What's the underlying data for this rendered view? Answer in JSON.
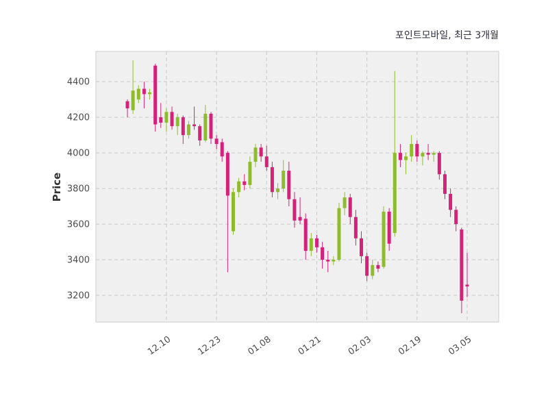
{
  "header": {
    "title": "포인트모바일, 최근 3개월"
  },
  "chart_data": {
    "type": "candlestick",
    "title": "포인트모바일, 최근 3개월",
    "xlabel": "",
    "ylabel": "Price",
    "yticks": [
      3200,
      3400,
      3600,
      3800,
      4000,
      4200,
      4400
    ],
    "ylim": [
      3050,
      4570
    ],
    "grid": "dashed",
    "legend": "none",
    "colors": {
      "up": "#8fbc2f",
      "down": "#d4217a",
      "plot_background": "#f0f0f0",
      "figure_background": "#ffffff",
      "grid": "#c8c8c8",
      "spine": "#cccccc",
      "text": "#4a4a4a",
      "title_text": "#2e2e3f"
    },
    "xticks": [
      {
        "index": 7,
        "label": "12.10"
      },
      {
        "index": 16,
        "label": "12.23"
      },
      {
        "index": 25,
        "label": "01.08"
      },
      {
        "index": 34,
        "label": "01.21"
      },
      {
        "index": 43,
        "label": "02.03"
      },
      {
        "index": 52,
        "label": "02.19"
      },
      {
        "index": 61,
        "label": "03.05"
      }
    ],
    "candles_format": [
      "open",
      "high",
      "low",
      "close"
    ],
    "candles": [
      [
        4290,
        4300,
        4200,
        4250
      ],
      [
        4240,
        4520,
        4220,
        4350
      ],
      [
        4300,
        4380,
        4280,
        4360
      ],
      [
        4360,
        4400,
        4250,
        4330
      ],
      [
        4330,
        4360,
        4300,
        4340
      ],
      [
        4490,
        4500,
        4120,
        4160
      ],
      [
        4200,
        4280,
        4140,
        4170
      ],
      [
        4170,
        4250,
        4120,
        4230
      ],
      [
        4230,
        4260,
        4130,
        4150
      ],
      [
        4150,
        4220,
        4100,
        4200
      ],
      [
        4200,
        4210,
        4050,
        4100
      ],
      [
        4100,
        4180,
        4080,
        4160
      ],
      [
        4160,
        4260,
        4130,
        4150
      ],
      [
        4150,
        4160,
        4040,
        4070
      ],
      [
        4070,
        4270,
        4060,
        4220
      ],
      [
        4220,
        4230,
        4050,
        4080
      ],
      [
        4080,
        4100,
        4020,
        4050
      ],
      [
        4060,
        4080,
        3950,
        3980
      ],
      [
        4000,
        4010,
        3330,
        3760
      ],
      [
        3560,
        3800,
        3540,
        3780
      ],
      [
        3780,
        3860,
        3750,
        3840
      ],
      [
        3840,
        3880,
        3790,
        3820
      ],
      [
        3820,
        3980,
        3800,
        3950
      ],
      [
        3950,
        4050,
        3920,
        4030
      ],
      [
        4030,
        4050,
        3950,
        3980
      ],
      [
        3980,
        4040,
        3900,
        3920
      ],
      [
        3920,
        3950,
        3750,
        3780
      ],
      [
        3780,
        3830,
        3740,
        3800
      ],
      [
        3800,
        3960,
        3780,
        3900
      ],
      [
        3900,
        3950,
        3700,
        3740
      ],
      [
        3740,
        3780,
        3580,
        3620
      ],
      [
        3640,
        3750,
        3600,
        3620
      ],
      [
        3630,
        3660,
        3400,
        3450
      ],
      [
        3450,
        3550,
        3420,
        3520
      ],
      [
        3520,
        3540,
        3440,
        3470
      ],
      [
        3470,
        3500,
        3350,
        3400
      ],
      [
        3400,
        3450,
        3330,
        3390
      ],
      [
        3390,
        3420,
        3370,
        3400
      ],
      [
        3400,
        3720,
        3390,
        3690
      ],
      [
        3690,
        3780,
        3650,
        3750
      ],
      [
        3750,
        3770,
        3600,
        3640
      ],
      [
        3640,
        3680,
        3480,
        3520
      ],
      [
        3520,
        3560,
        3380,
        3420
      ],
      [
        3420,
        3440,
        3280,
        3310
      ],
      [
        3310,
        3400,
        3290,
        3370
      ],
      [
        3370,
        3390,
        3330,
        3350
      ],
      [
        3360,
        3700,
        3350,
        3670
      ],
      [
        3670,
        3690,
        3450,
        3490
      ],
      [
        3550,
        4460,
        3530,
        4000
      ],
      [
        4000,
        4050,
        3920,
        3960
      ],
      [
        3960,
        4000,
        3880,
        3980
      ],
      [
        3980,
        4100,
        3950,
        4050
      ],
      [
        4050,
        4070,
        3950,
        3980
      ],
      [
        3980,
        4010,
        3930,
        4000
      ],
      [
        4000,
        4050,
        3960,
        3990
      ],
      [
        3990,
        4010,
        3950,
        4000
      ],
      [
        4000,
        4010,
        3850,
        3880
      ],
      [
        3880,
        3900,
        3740,
        3770
      ],
      [
        3770,
        3800,
        3640,
        3680
      ],
      [
        3680,
        3700,
        3560,
        3600
      ],
      [
        3570,
        3580,
        3100,
        3170
      ],
      [
        3260,
        3440,
        3190,
        3250
      ]
    ]
  }
}
